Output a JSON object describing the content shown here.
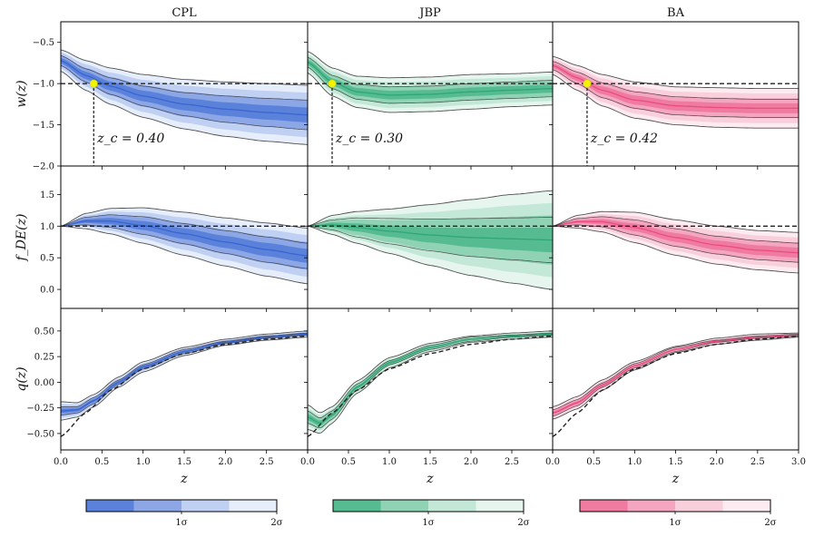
{
  "chart_data": {
    "type": "line",
    "columns": [
      "CPL",
      "JBP",
      "BA"
    ],
    "colors": {
      "CPL": [
        "#3a64d0",
        "#5b82db",
        "#8da7e6",
        "#c0d0f2",
        "#e7eefb"
      ],
      "JBP": [
        "#2fa677",
        "#57bb91",
        "#8fd2b4",
        "#c3e8d7",
        "#e6f6ee"
      ],
      "BA": [
        "#ea4c80",
        "#ef7ba0",
        "#f4a6c0",
        "#f9cfdc",
        "#fcebf1"
      ]
    },
    "xlabel": "z",
    "x_ticks": [
      "0.0",
      "0.5",
      "1.0",
      "1.5",
      "2.0",
      "2.5",
      "3.0"
    ],
    "xlim": [
      0,
      3
    ],
    "rows": [
      {
        "ylabel": "w(z)",
        "ylim": [
          -2.0,
          -0.25
        ],
        "yticks": [
          -0.5,
          -1.0,
          -1.5,
          -2.0
        ],
        "ytick_labels": [
          "−0.5",
          "−1.0",
          "−1.5",
          "−2.0"
        ],
        "reference": -1.0,
        "bands": {
          "CPL": {
            "z": [
              0,
              0.3,
              0.6,
              1.0,
              1.5,
              2.0,
              2.5,
              3.0
            ],
            "mean": [
              -0.72,
              -0.9,
              -1.03,
              -1.15,
              -1.25,
              -1.31,
              -1.35,
              -1.38
            ],
            "s1": [
              0.06,
              0.08,
              0.1,
              0.12,
              0.14,
              0.16,
              0.17,
              0.18
            ],
            "s2": [
              0.13,
              0.18,
              0.22,
              0.26,
              0.3,
              0.33,
              0.35,
              0.36
            ]
          },
          "JBP": {
            "z": [
              0,
              0.3,
              0.6,
              1.0,
              1.5,
              2.0,
              2.5,
              3.0
            ],
            "mean": [
              -0.74,
              -0.98,
              -1.1,
              -1.14,
              -1.13,
              -1.1,
              -1.08,
              -1.06
            ],
            "s1": [
              0.06,
              0.08,
              0.09,
              0.1,
              0.1,
              0.1,
              0.1,
              0.1
            ],
            "s2": [
              0.13,
              0.17,
              0.19,
              0.21,
              0.21,
              0.21,
              0.2,
              0.2
            ]
          },
          "BA": {
            "z": [
              0,
              0.3,
              0.6,
              1.0,
              1.5,
              2.0,
              2.5,
              3.0
            ],
            "mean": [
              -0.78,
              -0.93,
              -1.08,
              -1.2,
              -1.27,
              -1.29,
              -1.3,
              -1.3
            ],
            "s1": [
              0.05,
              0.07,
              0.09,
              0.1,
              0.11,
              0.11,
              0.11,
              0.11
            ],
            "s2": [
              0.11,
              0.15,
              0.19,
              0.22,
              0.23,
              0.24,
              0.24,
              0.24
            ]
          }
        },
        "crossings": {
          "CPL": {
            "z": 0.4,
            "label": "z_c = 0.40"
          },
          "JBP": {
            "z": 0.3,
            "label": "z_c = 0.30"
          },
          "BA": {
            "z": 0.42,
            "label": "z_c = 0.42"
          }
        }
      },
      {
        "ylabel": "f_DE(z)",
        "ylim": [
          -0.3,
          1.95
        ],
        "yticks": [
          0.0,
          0.5,
          1.0,
          1.5
        ],
        "ytick_labels": [
          "0.0",
          "0.5",
          "1.0",
          "1.5"
        ],
        "reference": 1.0,
        "bands": {
          "CPL": {
            "z": [
              0,
              0.3,
              0.6,
              1.0,
              1.5,
              2.0,
              2.5,
              3.0
            ],
            "mean": [
              1.0,
              1.08,
              1.08,
              1.01,
              0.88,
              0.75,
              0.63,
              0.53
            ],
            "s1": [
              0.0,
              0.06,
              0.1,
              0.14,
              0.16,
              0.18,
              0.2,
              0.2
            ],
            "s2": [
              0.0,
              0.12,
              0.2,
              0.28,
              0.34,
              0.38,
              0.42,
              0.44
            ]
          },
          "JBP": {
            "z": [
              0,
              0.3,
              0.6,
              1.0,
              1.5,
              2.0,
              2.5,
              3.0
            ],
            "mean": [
              1.0,
              1.02,
              0.98,
              0.92,
              0.86,
              0.82,
              0.8,
              0.78
            ],
            "s1": [
              0.0,
              0.08,
              0.15,
              0.2,
              0.25,
              0.3,
              0.33,
              0.36
            ],
            "s2": [
              0.0,
              0.15,
              0.25,
              0.35,
              0.48,
              0.6,
              0.7,
              0.78
            ]
          },
          "BA": {
            "z": [
              0,
              0.3,
              0.6,
              1.0,
              1.5,
              2.0,
              2.5,
              3.0
            ],
            "mean": [
              1.0,
              1.07,
              1.07,
              0.98,
              0.82,
              0.7,
              0.62,
              0.58
            ],
            "s1": [
              0.0,
              0.05,
              0.08,
              0.12,
              0.14,
              0.14,
              0.15,
              0.15
            ],
            "s2": [
              0.0,
              0.1,
              0.16,
              0.24,
              0.28,
              0.3,
              0.31,
              0.32
            ]
          }
        }
      },
      {
        "ylabel": "q(z)",
        "ylim": [
          -0.66,
          0.72
        ],
        "yticks": [
          0.5,
          0.25,
          0.0,
          -0.25,
          -0.5
        ],
        "ytick_labels": [
          "0.50",
          "0.25",
          "0.00",
          "−0.25",
          "−0.50"
        ],
        "reference_curve": {
          "z": [
            0,
            0.3,
            0.6,
            1.0,
            1.5,
            2.0,
            2.5,
            3.0
          ],
          "q": [
            -0.53,
            -0.3,
            -0.08,
            0.13,
            0.28,
            0.37,
            0.42,
            0.45
          ]
        },
        "bands": {
          "CPL": {
            "z": [
              0,
              0.2,
              0.4,
              0.7,
              1.0,
              1.5,
              2.0,
              2.5,
              3.0
            ],
            "mean": [
              -0.28,
              -0.27,
              -0.18,
              0.0,
              0.15,
              0.3,
              0.39,
              0.44,
              0.47
            ],
            "s1": [
              0.04,
              0.03,
              0.03,
              0.02,
              0.02,
              0.02,
              0.01,
              0.01,
              0.01
            ],
            "s2": [
              0.09,
              0.07,
              0.06,
              0.05,
              0.05,
              0.04,
              0.03,
              0.03,
              0.03
            ]
          },
          "JBP": {
            "z": [
              0,
              0.15,
              0.3,
              0.6,
              1.0,
              1.5,
              2.0,
              2.5,
              3.0
            ],
            "mean": [
              -0.34,
              -0.4,
              -0.32,
              -0.05,
              0.19,
              0.34,
              0.42,
              0.45,
              0.47
            ],
            "s1": [
              0.06,
              0.05,
              0.04,
              0.03,
              0.02,
              0.02,
              0.02,
              0.01,
              0.01
            ],
            "s2": [
              0.12,
              0.1,
              0.08,
              0.06,
              0.05,
              0.04,
              0.03,
              0.03,
              0.03
            ]
          },
          "BA": {
            "z": [
              0,
              0.3,
              0.6,
              1.0,
              1.5,
              2.0,
              2.5,
              3.0
            ],
            "mean": [
              -0.3,
              -0.2,
              -0.03,
              0.16,
              0.32,
              0.4,
              0.44,
              0.46
            ],
            "s1": [
              0.03,
              0.03,
              0.02,
              0.02,
              0.02,
              0.01,
              0.01,
              0.01
            ],
            "s2": [
              0.06,
              0.06,
              0.05,
              0.04,
              0.03,
              0.03,
              0.03,
              0.02
            ]
          }
        }
      }
    ],
    "colorbar": {
      "tick_labels": [
        "1σ",
        "2σ"
      ]
    }
  }
}
